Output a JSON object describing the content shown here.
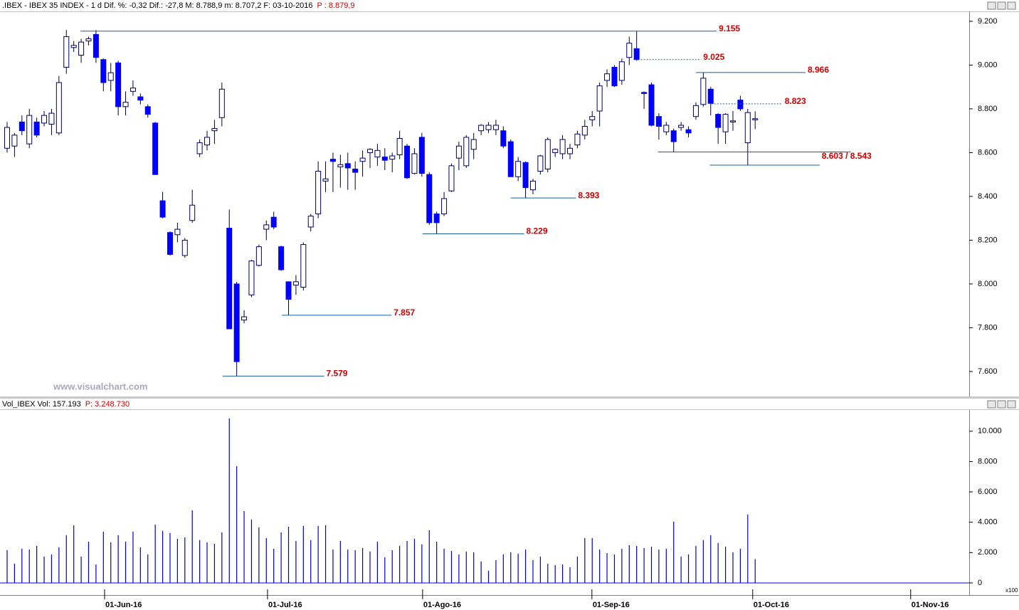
{
  "chart_data": [
    {
      "type": "candlestick",
      "title": ".IBEX - IBEX 35 INDEX - 1 d Dif. %: -0,32 Dif.: -27,8 M: 8.788,9 m: 8.707,2 F: 03-10-2016",
      "subtitle": "P : 8.879,9",
      "watermark": "www.visualchart.com",
      "up_color": "#ffffff",
      "down_color": "#0000ff",
      "line_color": "#1a5f9e",
      "open": [
        8620,
        8630,
        8740,
        8640,
        8740,
        8735,
        8730,
        8690,
        8990,
        9080,
        9045,
        9110,
        9140,
        9025,
        8930,
        9010,
        8810,
        8880,
        8855,
        8810,
        8735,
        8380,
        8235,
        8225,
        8130,
        8290,
        8595,
        8635,
        8700,
        8760,
        8255,
        8000,
        7835,
        7950,
        8085,
        8250,
        8305,
        8170,
        8010,
        7995,
        7985,
        8260,
        8320,
        8470,
        8570,
        8535,
        8550,
        8525,
        8560,
        8600,
        8580,
        8580,
        8570,
        8590,
        8630,
        8505,
        8670,
        8500,
        8320,
        8320,
        8425,
        8575,
        8540,
        8615,
        8700,
        8705,
        8705,
        8700,
        8650,
        8490,
        8555,
        8430,
        8515,
        8525,
        8600,
        8595,
        8595,
        8635,
        8680,
        8750,
        8790,
        8930,
        8990,
        8930,
        9035,
        9075,
        8875,
        8910,
        8765,
        8695,
        8700,
        8715,
        8705,
        8765,
        8820,
        8890,
        8775,
        8695,
        8740,
        8840,
        8645,
        8750
      ],
      "high": [
        8740,
        8690,
        8770,
        8800,
        8760,
        8790,
        8800,
        8950,
        9160,
        9110,
        9120,
        9130,
        9160,
        9030,
        9010,
        9020,
        8880,
        8930,
        8870,
        8820,
        8740,
        8420,
        8240,
        8280,
        8210,
        8430,
        8660,
        8700,
        8750,
        8920,
        8340,
        8010,
        7880,
        8110,
        8180,
        8290,
        8330,
        8175,
        8010,
        8040,
        8190,
        8320,
        8560,
        8560,
        8600,
        8590,
        8600,
        8560,
        8610,
        8620,
        8640,
        8620,
        8600,
        8700,
        8640,
        8620,
        8690,
        8510,
        8330,
        8420,
        8550,
        8650,
        8680,
        8690,
        8730,
        8740,
        8750,
        8720,
        8660,
        8580,
        8560,
        8480,
        8590,
        8670,
        8620,
        8680,
        8640,
        8700,
        8750,
        8790,
        8920,
        8980,
        9000,
        9030,
        9130,
        9155,
        8880,
        8920,
        8780,
        8740,
        8710,
        8740,
        8720,
        8830,
        8966,
        8900,
        8780,
        8780,
        8790,
        8860,
        8800,
        8788.9
      ],
      "low": [
        8600,
        8580,
        8680,
        8620,
        8670,
        8720,
        8680,
        8680,
        8960,
        9060,
        9010,
        9090,
        9010,
        8880,
        8880,
        8770,
        8770,
        8860,
        8820,
        8760,
        8500,
        8300,
        8130,
        8190,
        8120,
        8280,
        8580,
        8610,
        8640,
        8720,
        7795,
        7579,
        7820,
        7940,
        8080,
        8200,
        8250,
        8060,
        7857,
        7950,
        7970,
        8240,
        8300,
        8420,
        8420,
        8440,
        8430,
        8430,
        8490,
        8530,
        8540,
        8520,
        8510,
        8570,
        8480,
        8500,
        8490,
        8270,
        8229,
        8310,
        8420,
        8520,
        8530,
        8570,
        8680,
        8690,
        8680,
        8620,
        8490,
        8470,
        8393,
        8410,
        8500,
        8510,
        8580,
        8570,
        8570,
        8620,
        8660,
        8720,
        8720,
        8900,
        8900,
        8910,
        9000,
        9020,
        8800,
        8720,
        8660,
        8680,
        8603,
        8700,
        8670,
        8750,
        8810,
        8770,
        8640,
        8640,
        8700,
        8790,
        8543,
        8707.2
      ],
      "close": [
        8715,
        8680,
        8700,
        8770,
        8680,
        8770,
        8780,
        8920,
        9130,
        9090,
        9105,
        9120,
        9035,
        8920,
        8965,
        8810,
        8830,
        8895,
        8840,
        8775,
        8500,
        8305,
        8135,
        8250,
        8200,
        8360,
        8645,
        8670,
        8710,
        8890,
        7795,
        7645,
        7850,
        8105,
        8170,
        8270,
        8260,
        8065,
        7930,
        8010,
        8180,
        8310,
        8515,
        8480,
        8560,
        8545,
        8530,
        8510,
        8575,
        8615,
        8610,
        8565,
        8585,
        8665,
        8485,
        8595,
        8505,
        8280,
        8280,
        8390,
        8540,
        8630,
        8670,
        8660,
        8725,
        8725,
        8725,
        8630,
        8490,
        8560,
        8440,
        8470,
        8585,
        8660,
        8615,
        8660,
        8620,
        8685,
        8720,
        8765,
        8905,
        8960,
        8905,
        9015,
        9100,
        9025,
        8870,
        8725,
        8720,
        8725,
        8650,
        8725,
        8690,
        8815,
        8940,
        8825,
        8715,
        8775,
        8745,
        8800,
        8783,
        8755
      ],
      "ylim": [
        7486,
        9242
      ],
      "yticks": [
        {
          "value": 9200,
          "label": "9.200"
        },
        {
          "value": 9000,
          "label": "9.000"
        },
        {
          "value": 8800,
          "label": "8.800"
        },
        {
          "value": 8600,
          "label": "8.600"
        },
        {
          "value": 8400,
          "label": "8.400"
        },
        {
          "value": 8200,
          "label": "8.200"
        },
        {
          "value": 8000,
          "label": "8.000"
        },
        {
          "value": 7800,
          "label": "7.800"
        },
        {
          "value": 7600,
          "label": "7.600"
        }
      ],
      "xlim": [
        -0.96,
        129.9
      ],
      "xticks": [
        {
          "value": 13.16,
          "label": "01-Jun-16"
        },
        {
          "value": 35.16,
          "label": "01-Jul-16"
        },
        {
          "value": 56.1,
          "label": "01-Ago-16"
        },
        {
          "value": 78.96,
          "label": "01-Sep-16"
        },
        {
          "value": 100.67,
          "label": "01-Oct-16"
        },
        {
          "value": 122.0,
          "label": "01-Nov-16"
        }
      ],
      "annotations": [
        {
          "label": "9.155",
          "lines": [
            {
              "value": 9155,
              "x_range": [
                9.9,
                95.8
              ]
            }
          ]
        },
        {
          "label": "9.025",
          "dashed": true,
          "lines": [
            {
              "value": 9025,
              "x_range": [
                84.8,
                93.7
              ]
            }
          ]
        },
        {
          "label": "8.966",
          "lines": [
            {
              "value": 8966,
              "x_range": [
                93.0,
                107.8
              ]
            }
          ]
        },
        {
          "label": "8.823",
          "dashed": true,
          "lines": [
            {
              "value": 8823,
              "x_range": [
                95.1,
                104.7
              ]
            }
          ]
        },
        {
          "label": "8.603 / 8.543",
          "lines": [
            {
              "value": 8603,
              "x_range": [
                87.9,
                113.9
              ]
            },
            {
              "value": 8543,
              "x_range": [
                94.9,
                109.7
              ]
            }
          ]
        },
        {
          "label": "8.393",
          "lines": [
            {
              "value": 8393,
              "x_range": [
                68.0,
                76.8
              ]
            }
          ]
        },
        {
          "label": "8.229",
          "lines": [
            {
              "value": 8229,
              "x_range": [
                56.1,
                69.8
              ]
            }
          ]
        },
        {
          "label": "7.857",
          "lines": [
            {
              "value": 7857,
              "x_range": [
                37.1,
                51.9
              ]
            }
          ]
        },
        {
          "label": "7.579",
          "lines": [
            {
              "value": 7579,
              "x_range": [
                29.1,
                42.8
              ]
            }
          ]
        }
      ]
    },
    {
      "type": "bar",
      "title": "Vol_IBEX Vol: 157.193",
      "subtitle": "P: 3.248.730",
      "unit": "x100",
      "color": "#0000cc",
      "values": [
        2160,
        1270,
        2250,
        2200,
        2440,
        1740,
        1880,
        2350,
        3150,
        3800,
        1740,
        2720,
        1220,
        3380,
        2680,
        3150,
        2720,
        3380,
        2350,
        1880,
        3850,
        3430,
        3290,
        2910,
        3000,
        4790,
        2820,
        2680,
        2580,
        3330,
        10850,
        7700,
        4740,
        4180,
        3660,
        2960,
        2250,
        3330,
        3710,
        2770,
        3760,
        2820,
        3760,
        3800,
        2200,
        2770,
        2200,
        2160,
        2300,
        2070,
        2720,
        1690,
        2160,
        2440,
        2770,
        2910,
        2540,
        3470,
        2720,
        2250,
        2110,
        1880,
        2070,
        2020,
        1410,
        800,
        1500,
        1880,
        2020,
        1930,
        2200,
        1500,
        1740,
        1270,
        1170,
        1220,
        1030,
        1740,
        2960,
        2960,
        2200,
        1970,
        1880,
        2250,
        2490,
        2440,
        2300,
        2390,
        2200,
        2250,
        4040,
        1740,
        1880,
        2440,
        2820,
        3150,
        2630,
        2390,
        2020,
        2250,
        4510,
        1572
      ],
      "ylim": [
        -800,
        11400
      ],
      "yticks": [
        {
          "value": 10000,
          "label": "10.000"
        },
        {
          "value": 8000,
          "label": "8.000"
        },
        {
          "value": 6000,
          "label": "6.000"
        },
        {
          "value": 4000,
          "label": "4.000"
        },
        {
          "value": 2000,
          "label": "2.000"
        },
        0
      ]
    }
  ]
}
